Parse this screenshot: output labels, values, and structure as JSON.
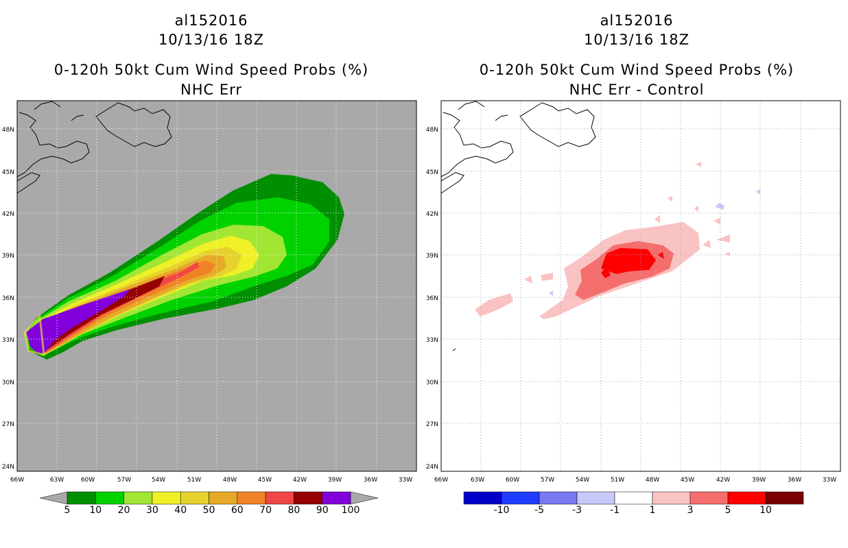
{
  "left": {
    "storm_id": "al152016",
    "datetime": "10/13/16 18Z",
    "product": "0-120h 50kt Cum Wind Speed Probs (%)",
    "subtitle": "NHC Err",
    "colorbar": {
      "colors": [
        "#008f00",
        "#00d200",
        "#a0e632",
        "#f0f028",
        "#e6d22d",
        "#e6aa28",
        "#f08228",
        "#f04646",
        "#960000",
        "#8200dc"
      ],
      "labels": [
        "5",
        "10",
        "20",
        "30",
        "40",
        "50",
        "60",
        "70",
        "80",
        "90",
        "100"
      ]
    }
  },
  "right": {
    "storm_id": "al152016",
    "datetime": "10/13/16 18Z",
    "product": "0-120h 50kt Cum Wind Speed Probs (%)",
    "subtitle": "NHC Err - Control",
    "colorbar": {
      "colors": [
        "#0000c8",
        "#1e3cff",
        "#7878f0",
        "#c8c8fa",
        "#ffffff",
        "#fac3c3",
        "#f56e6e",
        "#ff0000",
        "#780000"
      ],
      "labels": [
        "-10",
        "-5",
        "-3",
        "-1",
        "1",
        "3",
        "5",
        "10"
      ]
    }
  },
  "axes": {
    "lon_labels": [
      "66W",
      "63W",
      "60W",
      "57W",
      "54W",
      "51W",
      "48W",
      "45W",
      "42W",
      "39W",
      "36W",
      "33W"
    ],
    "lat_labels": [
      "24N",
      "27N",
      "30N",
      "33N",
      "36N",
      "39N",
      "42N",
      "45N",
      "48N"
    ]
  }
}
